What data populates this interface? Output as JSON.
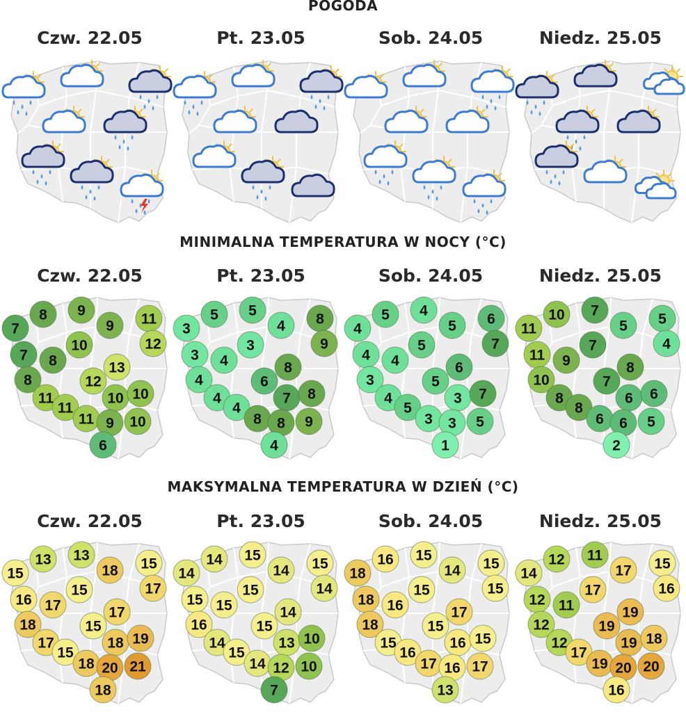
{
  "colors": {
    "temp_scale": {
      "1": "#7ff0ad",
      "2": "#7ff0ad",
      "3": "#72e6a0",
      "4": "#6fe09a",
      "5": "#66cf88",
      "6": "#5fbc78",
      "7": "#57a758",
      "8": "#6aa84f",
      "9": "#7cb34f",
      "10": "#8fc24f",
      "11": "#a1cc50",
      "12": "#b6d75a",
      "13": "#cfe169",
      "14": "#e3e77d",
      "15": "#f5ee8c",
      "16": "#f7e882",
      "17": "#f2d86c",
      "18": "#eec95f",
      "19": "#e9bb52",
      "20": "#e5a63c",
      "21": "#e09a30"
    },
    "cloud_light": "#ffffff",
    "cloud_dark": "#c9cfe0",
    "outline_light": "#3b7bd1",
    "outline_dark": "#1b2f6e",
    "sun": "#f2c23a",
    "rain": "#5b9bdc",
    "lightning": "#e23a2a"
  },
  "sections": {
    "weather": {
      "title": "POGODA",
      "days": [
        {
          "label": "Czw. 22.05",
          "icons": [
            "partly-cloudy-rain-icon",
            "partly-cloudy-icon",
            "dark-cloud-sun-rain-icon",
            "partly-cloudy-icon",
            "dark-cloud-sun-rain-icon",
            "dark-cloud-sun-rain-icon",
            "dark-cloud-sun-rain-icon",
            "partly-cloudy-storm-icon"
          ]
        },
        {
          "label": "Pt. 23.05",
          "icons": [
            "partly-cloudy-rain-icon",
            "partly-cloudy-icon",
            "dark-cloud-sun-rain-icon",
            "partly-cloudy-icon",
            "dark-cloud-icon",
            "partly-cloudy-icon",
            "dark-cloud-sun-rain-icon",
            "dark-cloud-icon"
          ]
        },
        {
          "label": "Sob. 24.05",
          "icons": [
            "partly-cloudy-icon",
            "partly-cloudy-icon",
            "partly-cloudy-rain-icon",
            "partly-cloudy-icon",
            "partly-cloudy-icon",
            "partly-cloudy-rain-icon",
            "partly-cloudy-rain-icon",
            "partly-cloudy-rain-icon"
          ]
        },
        {
          "label": "Niedz. 25.05",
          "icons": [
            "dark-cloud-sun-rain-icon",
            "dark-cloud-sun-icon",
            "double-cloud-icon",
            "dark-cloud-sun-rain-icon",
            "dark-cloud-sun-icon",
            "dark-cloud-sun-rain-icon",
            "partly-cloudy-icon",
            "double-cloud-icon"
          ]
        }
      ]
    },
    "min_temp": {
      "title": "MINIMALNA TEMPERATURA W NOCY (°C)",
      "days": [
        {
          "label": "Czw. 22.05",
          "values": [
            7,
            8,
            9,
            9,
            11,
            12,
            7,
            10,
            8,
            13,
            8,
            12,
            11,
            10,
            10,
            11,
            11,
            9,
            10,
            6
          ]
        },
        {
          "label": "Pt. 23.05",
          "values": [
            3,
            5,
            5,
            4,
            8,
            9,
            3,
            3,
            4,
            8,
            4,
            6,
            4,
            7,
            8,
            4,
            8,
            8,
            9,
            4
          ]
        },
        {
          "label": "Sob. 24.05",
          "values": [
            4,
            5,
            4,
            5,
            6,
            7,
            4,
            5,
            4,
            6,
            3,
            5,
            4,
            3,
            7,
            5,
            3,
            3,
            5,
            1
          ]
        },
        {
          "label": "Niedz. 25.05",
          "values": [
            11,
            10,
            7,
            5,
            5,
            4,
            11,
            7,
            9,
            8,
            10,
            7,
            8,
            6,
            6,
            8,
            6,
            6,
            5,
            2
          ]
        }
      ]
    },
    "max_temp": {
      "title": "MAKSYMALNA TEMPERATURA W DZIEŃ (°C)",
      "days": [
        {
          "label": "Czw. 22.05",
          "values": [
            15,
            13,
            13,
            18,
            15,
            17,
            16,
            15,
            17,
            17,
            18,
            15,
            17,
            18,
            19,
            15,
            18,
            20,
            21,
            18
          ]
        },
        {
          "label": "Pt. 23.05",
          "values": [
            14,
            14,
            15,
            14,
            15,
            14,
            15,
            15,
            15,
            14,
            16,
            15,
            14,
            13,
            10,
            15,
            14,
            12,
            10,
            7
          ]
        },
        {
          "label": "Sob. 24.05",
          "values": [
            18,
            16,
            15,
            14,
            15,
            15,
            18,
            15,
            16,
            17,
            18,
            15,
            15,
            16,
            15,
            16,
            17,
            16,
            17,
            13
          ]
        },
        {
          "label": "Niedz. 25.05",
          "values": [
            14,
            12,
            11,
            17,
            15,
            16,
            12,
            17,
            11,
            19,
            12,
            19,
            12,
            19,
            18,
            17,
            19,
            20,
            20,
            16
          ]
        }
      ]
    }
  }
}
